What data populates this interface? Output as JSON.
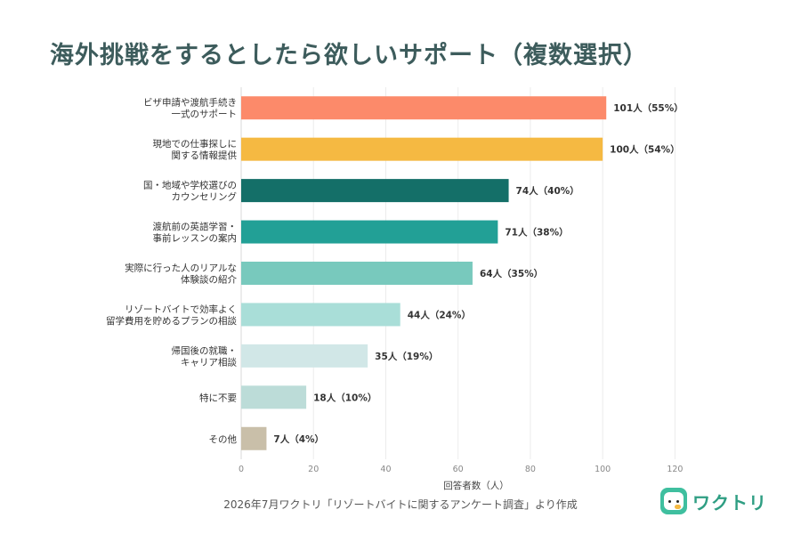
{
  "title": "海外挑戦をするとしたら欲しいサポート（複数選択）",
  "source": "2026年7月ワクトリ「リゾートバイトに関するアンケート調査」より作成",
  "logo": {
    "text": "ワクトリ",
    "icon": "bird-face-icon",
    "color": "#3fbf9f"
  },
  "chart_data": {
    "type": "bar",
    "orientation": "horizontal",
    "categories": [
      [
        "ビザ申請や渡航手続き",
        "一式のサポート"
      ],
      [
        "現地での仕事探しに",
        "関する情報提供"
      ],
      [
        "国・地域や学校選びの",
        "カウンセリング"
      ],
      [
        "渡航前の英語学習・",
        "事前レッスンの案内"
      ],
      [
        "実際に行った人のリアルな",
        "体験談の紹介"
      ],
      [
        "リゾートバイトで効率よく",
        "留学費用を貯めるプランの相談"
      ],
      [
        "帰国後の就職・",
        "キャリア相談"
      ],
      [
        "特に不要"
      ],
      [
        "その他"
      ]
    ],
    "values": [
      101,
      100,
      74,
      71,
      64,
      44,
      35,
      18,
      7
    ],
    "data_labels": [
      "101人（55%）",
      "100人（54%）",
      "74人（40%）",
      "71人（38%）",
      "64人（35%）",
      "44人（24%）",
      "35人（19%）",
      "18人（10%）",
      "7人（4%）"
    ],
    "colors": [
      "#fc8a6a",
      "#f5b942",
      "#146f68",
      "#22a096",
      "#78c9bd",
      "#a9ded8",
      "#d1e7e7",
      "#bcdcd8",
      "#c9bfa9"
    ],
    "xlabel": "回答者数（人）",
    "xlim": [
      0,
      130
    ],
    "xticks": [
      0,
      20,
      40,
      60,
      80,
      100,
      120
    ],
    "grid": true,
    "legend": "none"
  }
}
